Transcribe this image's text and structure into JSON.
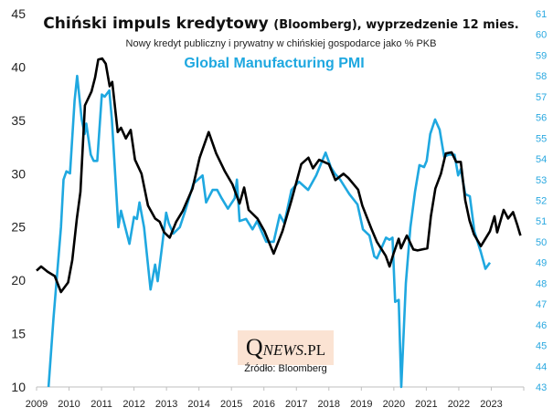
{
  "chart_data": {
    "type": "line",
    "title": "Chiński impuls kredytowy",
    "title_suffix": "(Bloomberg), wyprzedzenie 12 mies.",
    "subtitle": "Nowy kredyt publiczny i prywatny w chińskiej gospodarce jako % PKB",
    "secondary_title": "Global Manufacturing PMI",
    "source": "Źródło: Bloomberg",
    "logo_text": "QNEWS.PL",
    "xlim": [
      2009,
      2024
    ],
    "x_ticks": [
      "2009",
      "2010",
      "2011",
      "2012",
      "2013",
      "2014",
      "2015",
      "2016",
      "2017",
      "2018",
      "2019",
      "2020",
      "2021",
      "2022",
      "2023"
    ],
    "y_left": {
      "lim": [
        10,
        45
      ],
      "ticks": [
        "10",
        "15",
        "20",
        "25",
        "30",
        "35",
        "40",
        "45"
      ]
    },
    "y_right": {
      "lim": [
        43,
        61
      ],
      "ticks": [
        "43",
        "44",
        "45",
        "46",
        "47",
        "48",
        "49",
        "50",
        "51",
        "52",
        "53",
        "54",
        "55",
        "56",
        "57",
        "58",
        "59",
        "60",
        "61"
      ]
    },
    "grid": false,
    "colors": {
      "credit": "#000000",
      "pmi": "#1fa8e0",
      "right_axis": "#29a8e0"
    },
    "series": [
      {
        "key": "credit",
        "axis": "left",
        "points": [
          [
            2009.0,
            20.9
          ],
          [
            2009.14,
            21.3
          ],
          [
            2009.34,
            20.8
          ],
          [
            2009.56,
            20.4
          ],
          [
            2009.75,
            18.9
          ],
          [
            2009.97,
            19.8
          ],
          [
            2010.1,
            21.9
          ],
          [
            2010.24,
            25.8
          ],
          [
            2010.35,
            28.3
          ],
          [
            2010.49,
            36.4
          ],
          [
            2010.69,
            37.7
          ],
          [
            2010.8,
            39.0
          ],
          [
            2010.9,
            40.7
          ],
          [
            2011.02,
            40.8
          ],
          [
            2011.13,
            40.3
          ],
          [
            2011.25,
            38.2
          ],
          [
            2011.33,
            38.6
          ],
          [
            2011.5,
            33.9
          ],
          [
            2011.6,
            34.3
          ],
          [
            2011.75,
            33.3
          ],
          [
            2011.9,
            34.1
          ],
          [
            2012.03,
            31.3
          ],
          [
            2012.23,
            30.0
          ],
          [
            2012.43,
            27.0
          ],
          [
            2012.65,
            25.8
          ],
          [
            2012.79,
            25.5
          ],
          [
            2012.93,
            24.5
          ],
          [
            2013.1,
            24.0
          ],
          [
            2013.3,
            25.5
          ],
          [
            2013.5,
            26.5
          ],
          [
            2013.8,
            28.6
          ],
          [
            2014.02,
            31.5
          ],
          [
            2014.3,
            33.9
          ],
          [
            2014.53,
            31.9
          ],
          [
            2014.8,
            30.2
          ],
          [
            2015.03,
            29.0
          ],
          [
            2015.25,
            27.2
          ],
          [
            2015.39,
            28.7
          ],
          [
            2015.53,
            26.6
          ],
          [
            2015.8,
            25.8
          ],
          [
            2016.02,
            24.6
          ],
          [
            2016.3,
            22.5
          ],
          [
            2016.57,
            24.6
          ],
          [
            2016.85,
            27.5
          ],
          [
            2017.15,
            30.9
          ],
          [
            2017.37,
            31.5
          ],
          [
            2017.51,
            30.5
          ],
          [
            2017.7,
            31.3
          ],
          [
            2018.0,
            30.9
          ],
          [
            2018.2,
            29.4
          ],
          [
            2018.45,
            30.0
          ],
          [
            2018.6,
            29.6
          ],
          [
            2018.9,
            28.5
          ],
          [
            2019.03,
            27.0
          ],
          [
            2019.3,
            24.9
          ],
          [
            2019.48,
            23.6
          ],
          [
            2019.75,
            22.3
          ],
          [
            2019.87,
            21.3
          ],
          [
            2020.0,
            22.6
          ],
          [
            2020.15,
            23.9
          ],
          [
            2020.22,
            23.0
          ],
          [
            2020.4,
            24.2
          ],
          [
            2020.6,
            22.9
          ],
          [
            2020.73,
            22.8
          ],
          [
            2021.03,
            23.0
          ],
          [
            2021.14,
            26.0
          ],
          [
            2021.28,
            28.6
          ],
          [
            2021.45,
            30.0
          ],
          [
            2021.6,
            31.9
          ],
          [
            2021.78,
            32.0
          ],
          [
            2021.92,
            31.1
          ],
          [
            2022.06,
            31.1
          ],
          [
            2022.2,
            27.5
          ],
          [
            2022.33,
            25.6
          ],
          [
            2022.47,
            24.3
          ],
          [
            2022.68,
            23.2
          ],
          [
            2022.96,
            24.6
          ],
          [
            2023.1,
            26.0
          ],
          [
            2023.18,
            24.5
          ],
          [
            2023.38,
            26.6
          ],
          [
            2023.52,
            25.8
          ],
          [
            2023.67,
            26.4
          ],
          [
            2023.8,
            25.2
          ],
          [
            2023.9,
            24.2
          ]
        ]
      },
      {
        "key": "pmi",
        "axis": "right",
        "points": [
          [
            2009.37,
            40.0
          ],
          [
            2009.52,
            46.3
          ],
          [
            2009.75,
            50.7
          ],
          [
            2009.83,
            53.0
          ],
          [
            2009.92,
            53.4
          ],
          [
            2010.03,
            53.3
          ],
          [
            2010.17,
            56.8
          ],
          [
            2010.25,
            58.0
          ],
          [
            2010.39,
            55.9
          ],
          [
            2010.48,
            55.2
          ],
          [
            2010.53,
            55.7
          ],
          [
            2010.67,
            54.2
          ],
          [
            2010.76,
            53.9
          ],
          [
            2010.87,
            53.9
          ],
          [
            2011.01,
            57.1
          ],
          [
            2011.1,
            57.0
          ],
          [
            2011.24,
            57.3
          ],
          [
            2011.32,
            55.9
          ],
          [
            2011.52,
            50.7
          ],
          [
            2011.6,
            51.5
          ],
          [
            2011.86,
            49.9
          ],
          [
            2012.0,
            51.2
          ],
          [
            2012.09,
            51.1
          ],
          [
            2012.17,
            51.9
          ],
          [
            2012.31,
            50.7
          ],
          [
            2012.51,
            47.7
          ],
          [
            2012.65,
            48.9
          ],
          [
            2012.73,
            48.1
          ],
          [
            2012.85,
            49.6
          ],
          [
            2012.99,
            51.4
          ],
          [
            2013.07,
            50.9
          ],
          [
            2013.21,
            50.4
          ],
          [
            2013.41,
            50.7
          ],
          [
            2013.58,
            51.5
          ],
          [
            2013.83,
            52.8
          ],
          [
            2014.11,
            53.2
          ],
          [
            2014.22,
            51.9
          ],
          [
            2014.42,
            52.5
          ],
          [
            2014.56,
            52.5
          ],
          [
            2014.7,
            52.1
          ],
          [
            2014.89,
            51.6
          ],
          [
            2015.1,
            52.1
          ],
          [
            2015.17,
            53.0
          ],
          [
            2015.25,
            51.0
          ],
          [
            2015.45,
            51.1
          ],
          [
            2015.65,
            50.6
          ],
          [
            2015.79,
            51.0
          ],
          [
            2015.93,
            50.5
          ],
          [
            2016.07,
            50.0
          ],
          [
            2016.3,
            50.0
          ],
          [
            2016.49,
            51.3
          ],
          [
            2016.63,
            50.9
          ],
          [
            2016.85,
            52.5
          ],
          [
            2017.08,
            52.9
          ],
          [
            2017.36,
            52.5
          ],
          [
            2017.61,
            53.2
          ],
          [
            2017.9,
            54.3
          ],
          [
            2018.06,
            53.6
          ],
          [
            2018.18,
            53.3
          ],
          [
            2018.35,
            53.0
          ],
          [
            2018.63,
            52.3
          ],
          [
            2018.88,
            51.8
          ],
          [
            2019.05,
            50.6
          ],
          [
            2019.25,
            50.3
          ],
          [
            2019.4,
            49.3
          ],
          [
            2019.48,
            49.2
          ],
          [
            2019.76,
            50.2
          ],
          [
            2019.87,
            50.1
          ],
          [
            2019.96,
            50.2
          ],
          [
            2020.04,
            47.1
          ],
          [
            2020.15,
            47.2
          ],
          [
            2020.23,
            40.0
          ],
          [
            2020.37,
            48.0
          ],
          [
            2020.51,
            50.7
          ],
          [
            2020.65,
            52.4
          ],
          [
            2020.79,
            53.7
          ],
          [
            2020.93,
            53.6
          ],
          [
            2021.01,
            53.9
          ],
          [
            2021.12,
            55.2
          ],
          [
            2021.27,
            55.9
          ],
          [
            2021.41,
            55.4
          ],
          [
            2021.55,
            54.1
          ],
          [
            2021.69,
            54.2
          ],
          [
            2021.87,
            54.2
          ],
          [
            2021.98,
            53.2
          ],
          [
            2022.06,
            53.5
          ],
          [
            2022.2,
            52.3
          ],
          [
            2022.34,
            52.2
          ],
          [
            2022.48,
            50.5
          ],
          [
            2022.68,
            49.5
          ],
          [
            2022.82,
            48.7
          ],
          [
            2022.96,
            49.0
          ]
        ]
      }
    ]
  }
}
